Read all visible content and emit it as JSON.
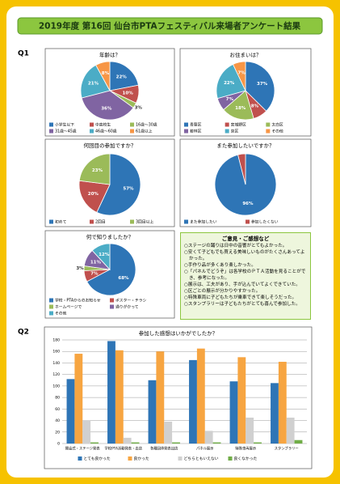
{
  "header": {
    "title": "2019年度 第16回 仙台市PTAフェスティバル来場者アンケート結果"
  },
  "questions": [
    "Q1",
    "Q2"
  ],
  "chart_data": [
    {
      "type": "pie",
      "title": "年齢は？",
      "categories": [
        "小学生以下",
        "中高校生",
        "16歳～30歳",
        "31歳～45歳",
        "46歳～60歳",
        "61歳以上"
      ],
      "values": [
        22,
        10,
        3,
        36,
        21,
        8
      ],
      "value_labels": [
        "22%",
        "10%",
        "3%",
        "36%",
        "21%",
        "8%"
      ],
      "colors": [
        "#2e75b6",
        "#c0504d",
        "#9bbb59",
        "#8064a2",
        "#4bacc6",
        "#f79646"
      ]
    },
    {
      "type": "pie",
      "title": "お住まいは？",
      "categories": [
        "青葉区",
        "宮城野区",
        "太白区",
        "若林区",
        "泉区",
        "その他"
      ],
      "values": [
        37,
        8,
        18,
        7,
        22,
        7
      ],
      "value_labels": [
        "37%",
        "8%",
        "18%",
        "7%",
        "22%",
        "7%"
      ],
      "colors": [
        "#2e75b6",
        "#c0504d",
        "#9bbb59",
        "#8064a2",
        "#4bacc6",
        "#f79646"
      ]
    },
    {
      "type": "pie",
      "title": "何回目の参加ですか？",
      "categories": [
        "初めて",
        "2回目",
        "3回目以上"
      ],
      "values": [
        57,
        20,
        23
      ],
      "value_labels": [
        "57%",
        "20%",
        "23%"
      ],
      "colors": [
        "#2e75b6",
        "#c0504d",
        "#9bbb59"
      ]
    },
    {
      "type": "pie",
      "title": "また参加したいですか？",
      "categories": [
        "また参加したい",
        "参加したくない"
      ],
      "values": [
        96,
        4
      ],
      "value_labels": [
        "96%",
        null
      ],
      "colors": [
        "#2e75b6",
        "#c0504d"
      ]
    },
    {
      "type": "pie",
      "title": "何で知りましたか？",
      "categories": [
        "学校・PTAからのお知らせ",
        "ポスター・チラシ",
        "ホームページで",
        "通りがかって",
        "その他"
      ],
      "values": [
        68,
        7,
        3,
        11,
        12
      ],
      "value_labels": [
        "68%",
        "7%",
        "3%",
        "11%",
        "12%"
      ],
      "colors": [
        "#2e75b6",
        "#c0504d",
        "#9bbb59",
        "#8064a2",
        "#4bacc6"
      ]
    },
    {
      "type": "bar",
      "title": "参加した感想はいかがでしたか？",
      "categories": [
        "開会式・ステージ発表",
        "学校PTA活動発表・出店",
        "各種団体発表出店",
        "パネル展示",
        "特殊車両展示",
        "スタンプラリー"
      ],
      "series": [
        {
          "name": "とても良かった",
          "color": "#2e75b6",
          "values": [
            112,
            178,
            110,
            145,
            108,
            105
          ]
        },
        {
          "name": "良かった",
          "color": "#f7a541",
          "values": [
            156,
            162,
            160,
            165,
            150,
            142
          ]
        },
        {
          "name": "どちらともいえない",
          "color": "#d0d0d0",
          "values": [
            40,
            10,
            38,
            22,
            45,
            45
          ]
        },
        {
          "name": "良くなかった",
          "color": "#70ad47",
          "values": [
            2,
            2,
            2,
            2,
            2,
            6
          ]
        }
      ],
      "ylim": [
        0,
        180
      ],
      "yticks": [
        0,
        20,
        40,
        60,
        80,
        100,
        120,
        140,
        160,
        180
      ],
      "grid": true
    }
  ],
  "comments": {
    "title": "ご意見・ご感想など",
    "items": [
      "○ステージの踊りは日中の音響がとてもよかった。",
      "○安くて子どもでも買える美味しいものがたくさんあってよかった。",
      "○手作り品が多くあり楽しかった。",
      "○「パネルでどうぞ」は各学校のＰＴＡ活動を見ることができ、参考になった。",
      "○展示は、工夫があり、手が込んでいてよくできていた。",
      "○区ごとの展示が分かりやすかった。",
      "○特殊車両に子どもたちが乗車できて楽しそうだった。",
      "○スタンプラリーは子どもたちがとても喜んで参加した。"
    ]
  }
}
